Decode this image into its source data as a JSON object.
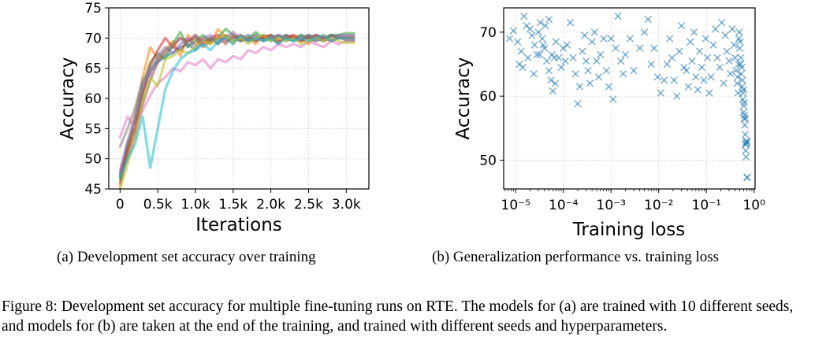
{
  "chart_data": [
    {
      "type": "line",
      "xlabel": "Iterations",
      "ylabel": "Accuracy",
      "xlim": [
        -150,
        3300
      ],
      "ylim": [
        45,
        75
      ],
      "xticks": [
        0,
        500,
        1000,
        1500,
        2000,
        2500,
        3000
      ],
      "xtick_labels": [
        "0",
        "0.5k",
        "1.0k",
        "1.5k",
        "2.0k",
        "2.5k",
        "3.0k"
      ],
      "yticks": [
        45,
        50,
        55,
        60,
        65,
        70,
        75
      ],
      "ytick_labels": [
        "45",
        "50",
        "55",
        "60",
        "65",
        "70",
        "75"
      ],
      "grid": true,
      "x": [
        0,
        100,
        200,
        300,
        400,
        500,
        600,
        700,
        800,
        900,
        1000,
        1100,
        1200,
        1300,
        1400,
        1500,
        1600,
        1700,
        1800,
        1900,
        2000,
        2100,
        2200,
        2300,
        2400,
        2500,
        2600,
        2700,
        2800,
        2900,
        3000,
        3100
      ],
      "series": [
        {
          "color": "#1f77b4",
          "values": [
            47.0,
            52.5,
            55.5,
            61.0,
            64.5,
            66.0,
            67.0,
            67.5,
            68.5,
            69.0,
            68.0,
            69.5,
            70.0,
            69.0,
            70.5,
            69.5,
            70.0,
            70.5,
            69.5,
            70.0,
            70.5,
            70.0,
            70.5,
            70.0,
            70.5,
            70.0,
            70.5,
            70.0,
            70.5,
            70.0,
            70.3,
            70.3
          ]
        },
        {
          "color": "#ff7f0e",
          "values": [
            45.5,
            51.0,
            57.5,
            63.5,
            68.5,
            66.5,
            68.0,
            69.5,
            67.0,
            70.5,
            69.0,
            70.0,
            69.0,
            71.5,
            70.0,
            69.0,
            70.5,
            70.0,
            69.0,
            70.5,
            70.0,
            69.5,
            70.0,
            70.5,
            70.0,
            69.0,
            70.0,
            70.5,
            69.5,
            70.0,
            70.2,
            70.2
          ]
        },
        {
          "color": "#2ca02c",
          "values": [
            46.5,
            52.0,
            56.5,
            62.0,
            66.0,
            67.5,
            66.5,
            69.0,
            71.0,
            68.5,
            69.5,
            70.5,
            69.5,
            70.0,
            71.5,
            70.5,
            69.5,
            70.0,
            71.0,
            70.0,
            69.5,
            70.5,
            70.0,
            69.5,
            70.5,
            70.0,
            69.5,
            70.0,
            70.5,
            70.5,
            70.8,
            70.8
          ]
        },
        {
          "color": "#d62728",
          "values": [
            47.5,
            51.5,
            55.0,
            60.5,
            65.5,
            68.0,
            70.0,
            68.5,
            70.0,
            69.5,
            70.5,
            69.0,
            70.0,
            70.5,
            69.5,
            70.0,
            70.5,
            69.5,
            70.0,
            70.0,
            70.5,
            69.5,
            70.0,
            70.5,
            69.5,
            70.0,
            70.5,
            70.0,
            69.5,
            70.0,
            70.0,
            70.0
          ]
        },
        {
          "color": "#9467bd",
          "values": [
            48.0,
            53.0,
            57.0,
            62.5,
            64.0,
            67.0,
            68.5,
            67.5,
            69.0,
            70.0,
            68.5,
            70.0,
            70.5,
            69.5,
            70.0,
            71.0,
            70.0,
            69.5,
            70.5,
            69.5,
            70.0,
            70.5,
            69.5,
            70.0,
            70.0,
            70.5,
            69.5,
            70.0,
            70.0,
            70.5,
            70.5,
            70.5
          ]
        },
        {
          "color": "#8c564b",
          "values": [
            46.0,
            50.5,
            54.0,
            59.0,
            63.0,
            66.0,
            67.5,
            68.5,
            68.0,
            69.5,
            70.0,
            68.5,
            69.5,
            70.0,
            69.0,
            70.5,
            69.5,
            70.0,
            69.5,
            70.5,
            70.0,
            69.0,
            70.5,
            70.0,
            69.5,
            70.5,
            70.0,
            69.5,
            70.5,
            70.0,
            69.8,
            69.8
          ]
        },
        {
          "color": "#e377c2",
          "values": [
            53.5,
            57.0,
            55.0,
            58.0,
            60.5,
            62.5,
            63.5,
            65.0,
            64.5,
            66.0,
            65.5,
            66.5,
            65.0,
            66.5,
            66.0,
            67.0,
            66.5,
            68.0,
            67.5,
            68.5,
            68.0,
            69.0,
            68.5,
            69.0,
            68.5,
            69.5,
            69.0,
            68.5,
            69.5,
            69.0,
            69.5,
            69.5
          ]
        },
        {
          "color": "#7f7f7f",
          "values": [
            52.0,
            55.0,
            58.5,
            63.0,
            65.0,
            66.5,
            68.0,
            69.0,
            70.0,
            68.5,
            70.5,
            69.5,
            70.0,
            69.0,
            70.5,
            70.0,
            69.5,
            70.0,
            70.5,
            69.5,
            70.0,
            70.5,
            70.0,
            69.5,
            70.0,
            70.5,
            70.0,
            69.5,
            70.0,
            70.5,
            69.5,
            69.5
          ]
        },
        {
          "color": "#bcbd22",
          "values": [
            45.0,
            49.0,
            53.5,
            59.5,
            63.5,
            62.0,
            66.5,
            67.0,
            68.0,
            67.5,
            68.5,
            69.5,
            69.0,
            70.0,
            70.5,
            69.5,
            70.0,
            69.0,
            70.0,
            70.5,
            69.5,
            70.0,
            69.5,
            70.0,
            69.0,
            69.5,
            70.0,
            69.5,
            70.0,
            69.5,
            69.2,
            69.2
          ]
        },
        {
          "color": "#17becf",
          "values": [
            47.0,
            50.0,
            52.5,
            57.0,
            48.5,
            55.0,
            61.5,
            64.5,
            66.5,
            67.5,
            68.0,
            69.0,
            68.0,
            69.5,
            70.0,
            69.0,
            70.5,
            69.5,
            70.0,
            69.5,
            70.0,
            69.0,
            70.0,
            69.5,
            70.0,
            69.5,
            70.0,
            70.5,
            69.5,
            70.0,
            70.0,
            70.0
          ]
        }
      ]
    },
    {
      "type": "scatter",
      "xlabel": "Training loss",
      "ylabel": "Accuracy",
      "xscale": "log",
      "xlim": [
        5.6e-06,
        1.05
      ],
      "ylim": [
        45.5,
        73.8
      ],
      "xticks": [
        1e-05,
        0.0001,
        0.001,
        0.01,
        0.1,
        1
      ],
      "xtick_labels": [
        "10⁻⁵",
        "10⁻⁴",
        "10⁻³",
        "10⁻²",
        "10⁻¹",
        "10⁰"
      ],
      "yticks": [
        50,
        60,
        70
      ],
      "ytick_labels": [
        "50",
        "60",
        "70"
      ],
      "grid": true,
      "marker": "x",
      "color": "#1f77b4",
      "points": [
        [
          7.5e-06,
          69.0
        ],
        [
          9e-06,
          70.2
        ],
        [
          1.1e-05,
          68.5
        ],
        [
          1.3e-05,
          67.0
        ],
        [
          1.5e-05,
          72.5
        ],
        [
          1.7e-05,
          71.0
        ],
        [
          2e-05,
          70.5
        ],
        [
          2.2e-05,
          69.5
        ],
        [
          2.5e-05,
          68.0
        ],
        [
          2.8e-05,
          66.5
        ],
        [
          3e-05,
          70.0
        ],
        [
          3.3e-05,
          71.5
        ],
        [
          3.6e-05,
          69.0
        ],
        [
          4e-05,
          67.5
        ],
        [
          4.5e-05,
          65.5
        ],
        [
          5e-05,
          64.0
        ],
        [
          5.5e-05,
          62.5
        ],
        [
          6e-05,
          60.8
        ],
        [
          6.5e-05,
          66.0
        ],
        [
          7e-05,
          68.5
        ],
        [
          1.2e-05,
          65.0
        ],
        [
          1.4e-05,
          64.5
        ],
        [
          1.8e-05,
          66.0
        ],
        [
          2.4e-05,
          63.5
        ],
        [
          3.2e-05,
          66.5
        ],
        [
          3.8e-05,
          68.0
        ],
        [
          4.2e-05,
          71.0
        ],
        [
          5e-05,
          72.0
        ],
        [
          5.8e-05,
          66.5
        ],
        [
          6.8e-05,
          62.0
        ],
        [
          8e-05,
          66.0
        ],
        [
          9e-05,
          64.5
        ],
        [
          0.0001,
          67.5
        ],
        [
          0.00011,
          65.5
        ],
        [
          0.00012,
          68.0
        ],
        [
          0.00014,
          71.5
        ],
        [
          0.00016,
          66.0
        ],
        [
          0.00018,
          63.5
        ],
        [
          0.0002,
          58.8
        ],
        [
          0.00022,
          61.5
        ],
        [
          0.00025,
          67.0
        ],
        [
          0.00028,
          69.5
        ],
        [
          0.0003,
          65.5
        ],
        [
          0.00033,
          64.0
        ],
        [
          0.00036,
          62.0
        ],
        [
          0.0004,
          68.5
        ],
        [
          0.00045,
          70.0
        ],
        [
          0.0005,
          65.5
        ],
        [
          0.00055,
          63.0
        ],
        [
          0.0006,
          66.5
        ],
        [
          0.0007,
          69.0
        ],
        [
          0.0008,
          64.0
        ],
        [
          0.0009,
          61.5
        ],
        [
          0.001,
          69.0
        ],
        [
          0.0011,
          59.5
        ],
        [
          0.00125,
          67.5
        ],
        [
          0.0014,
          72.5
        ],
        [
          0.0016,
          65.5
        ],
        [
          0.0018,
          63.5
        ],
        [
          0.002,
          66.5
        ],
        [
          0.0025,
          69.0
        ],
        [
          0.003,
          64.0
        ],
        [
          0.004,
          67.5
        ],
        [
          0.005,
          70.0
        ],
        [
          0.006,
          72.0
        ],
        [
          0.007,
          65.0
        ],
        [
          0.008,
          67.5
        ],
        [
          0.0095,
          63.0
        ],
        [
          0.011,
          60.5
        ],
        [
          0.013,
          62.5
        ],
        [
          0.015,
          65.0
        ],
        [
          0.017,
          69.0
        ],
        [
          0.019,
          66.0
        ],
        [
          0.021,
          62.5
        ],
        [
          0.024,
          60.0
        ],
        [
          0.027,
          67.0
        ],
        [
          0.03,
          71.0
        ],
        [
          0.034,
          64.5
        ],
        [
          0.038,
          64.0
        ],
        [
          0.042,
          61.5
        ],
        [
          0.046,
          68.5
        ],
        [
          0.05,
          65.5
        ],
        [
          0.055,
          70.0
        ],
        [
          0.06,
          63.0
        ],
        [
          0.066,
          61.0
        ],
        [
          0.072,
          67.0
        ],
        [
          0.08,
          64.5
        ],
        [
          0.088,
          62.5
        ],
        [
          0.097,
          69.0
        ],
        [
          0.105,
          66.0
        ],
        [
          0.115,
          60.5
        ],
        [
          0.125,
          63.0
        ],
        [
          0.14,
          68.0
        ],
        [
          0.155,
          70.5
        ],
        [
          0.17,
          66.0
        ],
        [
          0.19,
          64.5
        ],
        [
          0.21,
          71.5
        ],
        [
          0.23,
          62.0
        ],
        [
          0.25,
          69.5
        ],
        [
          0.27,
          67.0
        ],
        [
          0.3,
          65.5
        ],
        [
          0.32,
          63.5
        ],
        [
          0.35,
          70.5
        ],
        [
          0.38,
          68.0
        ],
        [
          0.4,
          66.0
        ],
        [
          0.42,
          64.0
        ],
        [
          0.44,
          62.0
        ],
        [
          0.46,
          60.5
        ],
        [
          0.48,
          69.0
        ],
        [
          0.5,
          67.5
        ],
        [
          0.52,
          65.0
        ],
        [
          0.54,
          63.5
        ],
        [
          0.56,
          61.5
        ],
        [
          0.58,
          59.5
        ],
        [
          0.6,
          57.5
        ],
        [
          0.62,
          56.5
        ],
        [
          0.64,
          55.5
        ],
        [
          0.65,
          54.0
        ],
        [
          0.66,
          52.5
        ],
        [
          0.67,
          51.5
        ],
        [
          0.68,
          50.5
        ],
        [
          0.69,
          52.8
        ],
        [
          0.7,
          52.8
        ],
        [
          0.71,
          47.3
        ],
        [
          0.72,
          47.3
        ],
        [
          0.55,
          64.5
        ],
        [
          0.57,
          62.5
        ],
        [
          0.59,
          60.5
        ],
        [
          0.61,
          58.5
        ],
        [
          0.63,
          57.0
        ],
        [
          0.53,
          66.0
        ],
        [
          0.51,
          68.5
        ],
        [
          0.49,
          70.0
        ],
        [
          0.47,
          65.0
        ],
        [
          0.45,
          63.0
        ],
        [
          0.6,
          61.0
        ],
        [
          0.62,
          59.0
        ],
        [
          0.66,
          56.5
        ],
        [
          0.68,
          52.5
        ],
        [
          0.7,
          53.0
        ]
      ]
    }
  ],
  "captions": {
    "sub_a": "(a) Development set accuracy over training",
    "sub_b": "(b) Generalization performance vs. training loss",
    "figure": "Figure 8: Development set accuracy for multiple fine-tuning runs on RTE. The models for (a) are trained with 10 different seeds, and models for (b) are taken at the end of the training, and trained with different seeds and hyperparameters."
  }
}
